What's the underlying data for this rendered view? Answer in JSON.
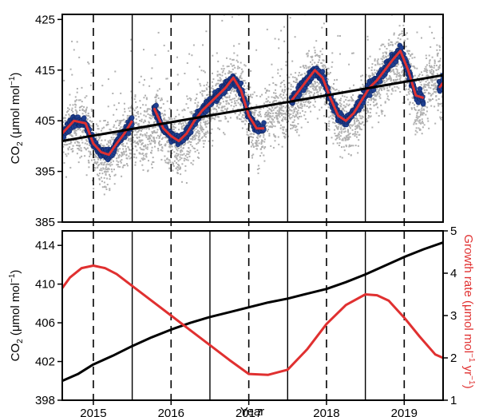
{
  "chart_data": [
    {
      "type": "scatter",
      "ylabel_main": "CO",
      "ylabel_sub": "2",
      "ylabel_unit_prefix": " (μmol mol",
      "ylabel_unit_sup": "−1",
      "ylabel_unit_suffix": ")",
      "xlim": [
        2014.6,
        2019.5
      ],
      "ylim": [
        385,
        426
      ],
      "yticks": [
        385,
        395,
        405,
        415,
        425
      ],
      "xticks": [
        2015,
        2016,
        2017,
        2018,
        2019
      ],
      "dashed_lines_x": [
        2015.0,
        2016.0,
        2017.0,
        2018.0,
        2019.0
      ],
      "solid_lines_x": [
        2015.5,
        2016.5,
        2017.5,
        2018.5
      ],
      "colors": {
        "raw": "#b0b0b0",
        "daily": "#1f3f8f",
        "smooth": "#e03030",
        "trend": "#000000"
      },
      "series": [
        {
          "kind": "raw",
          "style": "grey points"
        },
        {
          "kind": "daily",
          "style": "blue circles"
        },
        {
          "kind": "smooth",
          "style": "red line",
          "x": [
            2014.6,
            2014.75,
            2014.9,
            2015.0,
            2015.1,
            2015.2,
            2015.3,
            2015.4,
            2015.5
          ],
          "y": [
            402.5,
            405.0,
            404.5,
            400.5,
            398.8,
            398.3,
            400.5,
            402.5,
            405.0
          ]
        },
        {
          "kind": "smooth",
          "style": "red line",
          "x": [
            2015.78,
            2015.9,
            2016.0,
            2016.1,
            2016.2,
            2016.3,
            2016.4,
            2016.5,
            2016.6,
            2016.7,
            2016.8,
            2016.9,
            2017.0,
            2017.1,
            2017.2
          ],
          "y": [
            407.5,
            403.5,
            402.0,
            401.0,
            402.5,
            405.0,
            407.0,
            408.5,
            410.0,
            411.5,
            413.5,
            411.0,
            406.0,
            403.5,
            403.5
          ]
        },
        {
          "kind": "smooth",
          "style": "red line",
          "x": [
            2017.55,
            2017.65,
            2017.75,
            2017.85,
            2017.95,
            2018.05,
            2018.15,
            2018.25,
            2018.35,
            2018.45,
            2018.55,
            2018.65,
            2018.75,
            2018.85,
            2018.95,
            2019.05,
            2019.15,
            2019.25
          ],
          "y": [
            409.0,
            411.0,
            413.0,
            415.0,
            413.5,
            409.5,
            406.0,
            405.0,
            406.5,
            409.0,
            411.5,
            413.0,
            415.0,
            417.0,
            418.8,
            415.0,
            410.0,
            409.5
          ]
        },
        {
          "kind": "smooth",
          "style": "red line",
          "x": [
            2019.45,
            2019.5
          ],
          "y": [
            411.5,
            412.5
          ]
        },
        {
          "kind": "trend",
          "style": "black line",
          "x": [
            2014.6,
            2019.5
          ],
          "y": [
            401.0,
            414.0
          ]
        }
      ]
    },
    {
      "type": "line",
      "xlabel": "Year",
      "ylabel_main": "CO",
      "ylabel_sub": "2",
      "ylabel_unit_prefix": " (μmol mol",
      "ylabel_unit_sup": "−1",
      "ylabel_unit_suffix": ")",
      "y2label_main": "Growth rate (μmol mol",
      "y2label_sup1": "−1",
      "y2label_mid": " yr",
      "y2label_sup2": "−1",
      "y2label_suffix": ")",
      "xlim": [
        2014.6,
        2019.5
      ],
      "ylim": [
        398,
        415.5
      ],
      "yticks": [
        398,
        402,
        406,
        410,
        414
      ],
      "y2lim": [
        1,
        5
      ],
      "y2ticks": [
        1,
        2,
        3,
        4,
        5
      ],
      "xticks": [
        2015,
        2016,
        2017,
        2018,
        2019
      ],
      "xtick_labels": [
        "2015",
        "2016",
        "2017",
        "2018",
        "2019"
      ],
      "dashed_lines_x": [
        2015.0,
        2016.0,
        2017.0,
        2018.0,
        2019.0
      ],
      "solid_lines_x": [
        2015.5,
        2016.5,
        2017.5,
        2018.5
      ],
      "colors": {
        "co2": "#000000",
        "growth": "#e03030",
        "y2label": "#e03030"
      },
      "series": [
        {
          "name": "",
          "axis": "left",
          "color": "#000000",
          "x": [
            2014.6,
            2014.8,
            2015.0,
            2015.25,
            2015.5,
            2015.75,
            2016.0,
            2016.25,
            2016.5,
            2016.75,
            2017.0,
            2017.25,
            2017.5,
            2017.75,
            2018.0,
            2018.25,
            2018.5,
            2018.75,
            2019.0,
            2019.25,
            2019.5
          ],
          "y": [
            400.0,
            400.7,
            401.7,
            402.6,
            403.6,
            404.5,
            405.3,
            406.0,
            406.6,
            407.1,
            407.6,
            408.1,
            408.5,
            409.0,
            409.5,
            410.2,
            411.0,
            411.9,
            412.8,
            413.6,
            414.3
          ]
        },
        {
          "name": "",
          "axis": "right",
          "color": "#e03030",
          "x": [
            2014.6,
            2014.7,
            2014.85,
            2015.0,
            2015.15,
            2015.3,
            2015.5,
            2015.75,
            2016.0,
            2016.25,
            2016.5,
            2016.75,
            2017.0,
            2017.25,
            2017.5,
            2017.75,
            2018.0,
            2018.25,
            2018.5,
            2018.65,
            2018.8,
            2019.0,
            2019.2,
            2019.4,
            2019.5
          ],
          "y": [
            3.65,
            3.9,
            4.12,
            4.18,
            4.12,
            3.98,
            3.7,
            3.35,
            3.0,
            2.65,
            2.3,
            1.95,
            1.62,
            1.6,
            1.72,
            2.2,
            2.8,
            3.25,
            3.5,
            3.48,
            3.35,
            2.95,
            2.5,
            2.08,
            2.0
          ]
        }
      ]
    }
  ]
}
